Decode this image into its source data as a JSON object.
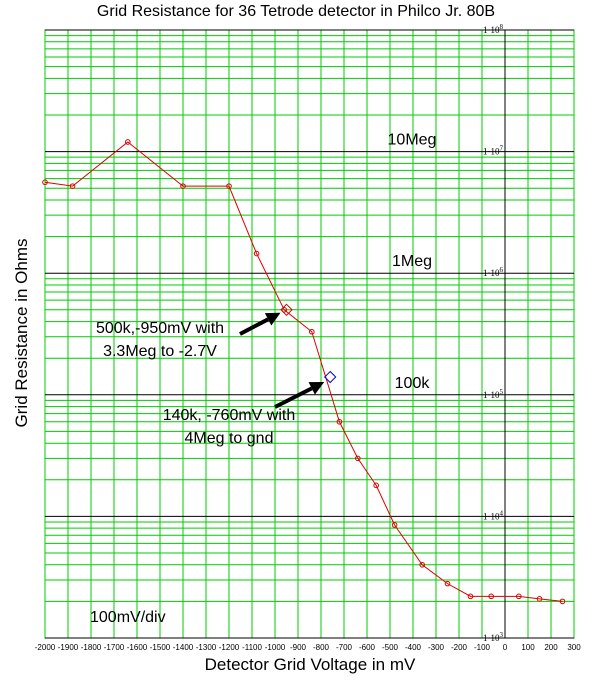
{
  "chart_data": {
    "type": "line",
    "title": "Grid Resistance for 36 Tetrode detector in Philco Jr. 80B",
    "xlabel": "Detector Grid Voltage in mV",
    "ylabel": "Grid Resistance in Ohms",
    "xlim": [
      -2000,
      300
    ],
    "ylim": [
      1000,
      100000000
    ],
    "yscale": "log",
    "grid": true,
    "x_ticks": [
      -2000,
      -1900,
      -1800,
      -1700,
      -1600,
      -1500,
      -1400,
      -1300,
      -1200,
      -1100,
      -1000,
      -900,
      -800,
      -700,
      -600,
      -500,
      -400,
      -300,
      -200,
      -100,
      0,
      100,
      200,
      300
    ],
    "y_ticks": [
      {
        "value": 1000,
        "mantissa": "1·10",
        "exp": "3"
      },
      {
        "value": 10000,
        "mantissa": "1·10",
        "exp": "4"
      },
      {
        "value": 100000,
        "mantissa": "1·10",
        "exp": "5"
      },
      {
        "value": 1000000,
        "mantissa": "1·10",
        "exp": "6"
      },
      {
        "value": 10000000,
        "mantissa": "1·10",
        "exp": "7"
      },
      {
        "value": 100000000,
        "mantissa": "1·10",
        "exp": "8"
      }
    ],
    "series": [
      {
        "color": "#dd0000",
        "x": [
          -2000,
          -1880,
          -1640,
          -1400,
          -1200,
          -1080,
          -960,
          -840,
          -720,
          -640,
          -560,
          -480,
          -360,
          -250,
          -150,
          -60,
          60,
          150,
          250
        ],
        "y": [
          5600000,
          5200000,
          12000000,
          5200000,
          5200000,
          1450000,
          500000,
          330000,
          60000,
          30000,
          18000,
          8500,
          4000,
          2800,
          2200,
          2200,
          2200,
          2100,
          2000
        ]
      }
    ],
    "highlighted_points": [
      {
        "x": -950,
        "y": 500000,
        "shape": "diamond",
        "color": "#cc0000"
      },
      {
        "x": -760,
        "y": 140000,
        "shape": "diamond",
        "color": "#0000cc"
      }
    ],
    "decade_labels": [
      {
        "text": "10Meg",
        "y": 10000000
      },
      {
        "text": "1Meg",
        "y": 1000000
      },
      {
        "text": "100k",
        "y": 100000
      }
    ],
    "annotations": [
      {
        "lines": [
          "500k,-950mV with",
          "3.3Meg to -2.7V"
        ],
        "arrow_to": {
          "x": -950,
          "y": 500000
        }
      },
      {
        "lines": [
          "140k, -760mV with",
          "4Meg to gnd"
        ],
        "arrow_to": {
          "x": -760,
          "y": 140000
        }
      }
    ],
    "scale_note": "100mV/div",
    "colors": {
      "grid": "#00cc00",
      "decade_line": "#000000",
      "zero_line": "#000000",
      "curve": "#dd0000"
    }
  }
}
